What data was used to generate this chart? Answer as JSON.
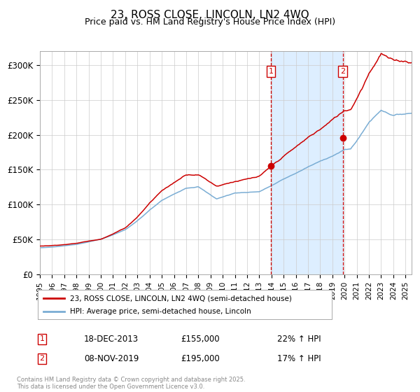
{
  "title": "23, ROSS CLOSE, LINCOLN, LN2 4WQ",
  "subtitle": "Price paid vs. HM Land Registry's House Price Index (HPI)",
  "legend_line1": "23, ROSS CLOSE, LINCOLN, LN2 4WQ (semi-detached house)",
  "legend_line2": "HPI: Average price, semi-detached house, Lincoln",
  "sale1_date": "18-DEC-2013",
  "sale1_date_x": 2013.96,
  "sale1_price": 155000,
  "sale1_hpi": "22% ↑ HPI",
  "sale2_date": "08-NOV-2019",
  "sale2_date_x": 2019.85,
  "sale2_price": 195000,
  "sale2_hpi": "17% ↑ HPI",
  "x_start": 1995,
  "x_end": 2025.5,
  "y_min": 0,
  "y_max": 320000,
  "y_ticks": [
    0,
    50000,
    100000,
    150000,
    200000,
    250000,
    300000
  ],
  "y_tick_labels": [
    "£0",
    "£50K",
    "£100K",
    "£150K",
    "£200K",
    "£250K",
    "£300K"
  ],
  "red_color": "#cc0000",
  "blue_color": "#7aadd4",
  "shade_color": "#ddeeff",
  "grid_color": "#cccccc",
  "background_color": "#ffffff",
  "footer_text": "Contains HM Land Registry data © Crown copyright and database right 2025.\nThis data is licensed under the Open Government Licence v3.0.",
  "x_tick_years": [
    1995,
    1996,
    1997,
    1998,
    1999,
    2000,
    2001,
    2002,
    2003,
    2004,
    2005,
    2006,
    2007,
    2008,
    2009,
    2010,
    2011,
    2012,
    2013,
    2014,
    2015,
    2016,
    2017,
    2018,
    2019,
    2020,
    2021,
    2022,
    2023,
    2024,
    2025
  ]
}
